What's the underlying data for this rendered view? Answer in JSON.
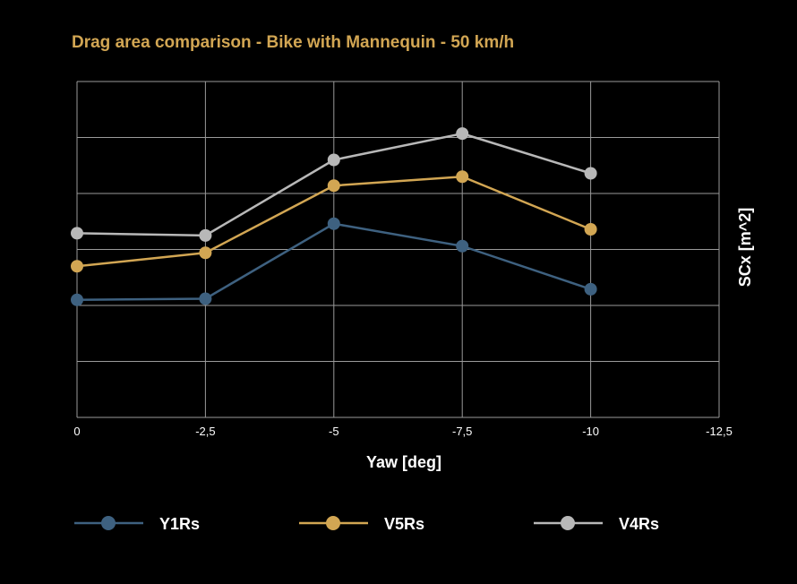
{
  "chart_data": {
    "type": "line",
    "title": "Drag area comparison - Bike with Mannequin - 50 km/h",
    "xlabel": "Yaw [deg]",
    "ylabel": "SCx [m^2]",
    "x": [
      0,
      -2.5,
      -5,
      -7.5,
      -10
    ],
    "x_ticks": [
      "0",
      "-2,5",
      "-5",
      "-7,5",
      "-10",
      "-12,5"
    ],
    "xlim": [
      0,
      -12.5
    ],
    "ylim": [
      0,
      6
    ],
    "y_ticks_shown": false,
    "grid": true,
    "legend": "bottom",
    "series": [
      {
        "name": "Y1Rs",
        "color": "#3e6180",
        "values": [
          2.1,
          2.12,
          3.46,
          3.06,
          2.29
        ]
      },
      {
        "name": "V5Rs",
        "color": "#d2a653",
        "values": [
          2.7,
          2.94,
          4.14,
          4.3,
          3.36
        ]
      },
      {
        "name": "V4Rs",
        "color": "#b8b8b8",
        "values": [
          3.29,
          3.25,
          4.6,
          5.07,
          4.36
        ]
      }
    ],
    "title_color": "#d2a653",
    "grid_color": "#9a9a9a"
  }
}
